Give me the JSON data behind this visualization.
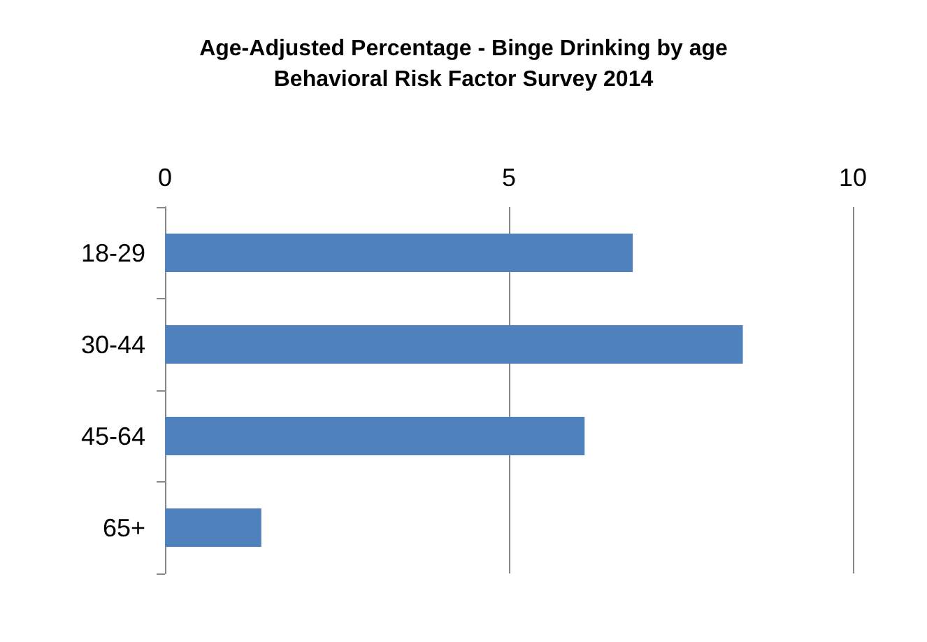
{
  "chart_data": {
    "type": "bar",
    "orientation": "horizontal",
    "title": "Age-Adjusted Percentage - Binge Drinking by age",
    "subtitle": "Behavioral Risk Factor Survey 2014",
    "categories": [
      "18-29",
      "30-44",
      "45-64",
      "65+"
    ],
    "values": [
      6.8,
      8.4,
      6.1,
      1.4
    ],
    "color": "#4f81bd",
    "xlim": [
      0,
      10
    ],
    "xticks": [
      0,
      5,
      10
    ],
    "grid": "x"
  }
}
